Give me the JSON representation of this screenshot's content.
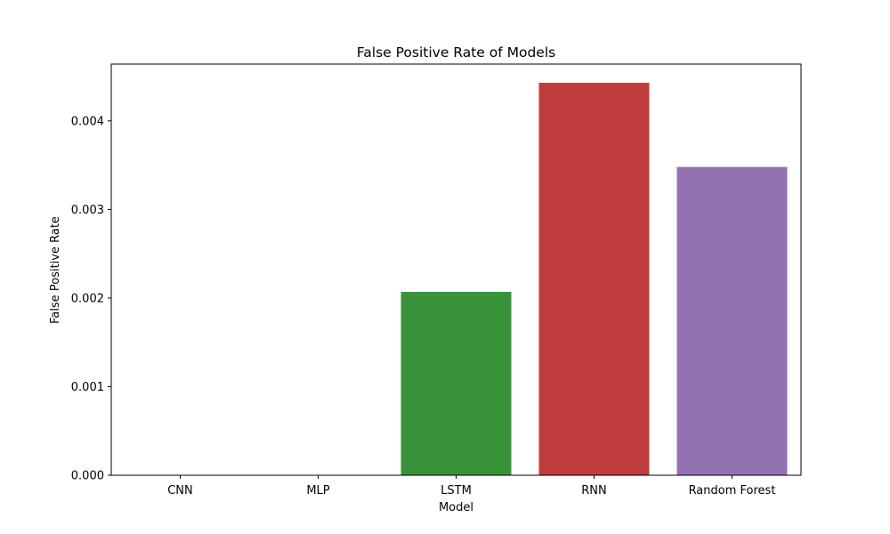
{
  "chart_data": {
    "type": "bar",
    "title": "False Positive Rate of Models",
    "xlabel": "Model",
    "ylabel": "False Positive Rate",
    "categories": [
      "CNN",
      "MLP",
      "LSTM",
      "RNN",
      "Random Forest"
    ],
    "values": [
      0.0,
      0.0,
      0.00207,
      0.00443,
      0.00348
    ],
    "colors": [
      "#3a75af",
      "#e1812c",
      "#3a923a",
      "#c03d3e",
      "#9372b2"
    ],
    "ylim": [
      0,
      0.004641
    ],
    "yticks": [
      0.0,
      0.001,
      0.002,
      0.003,
      0.004
    ],
    "ytick_labels": [
      "0.000",
      "0.001",
      "0.002",
      "0.003",
      "0.004"
    ],
    "grid": false,
    "legend": "none"
  }
}
